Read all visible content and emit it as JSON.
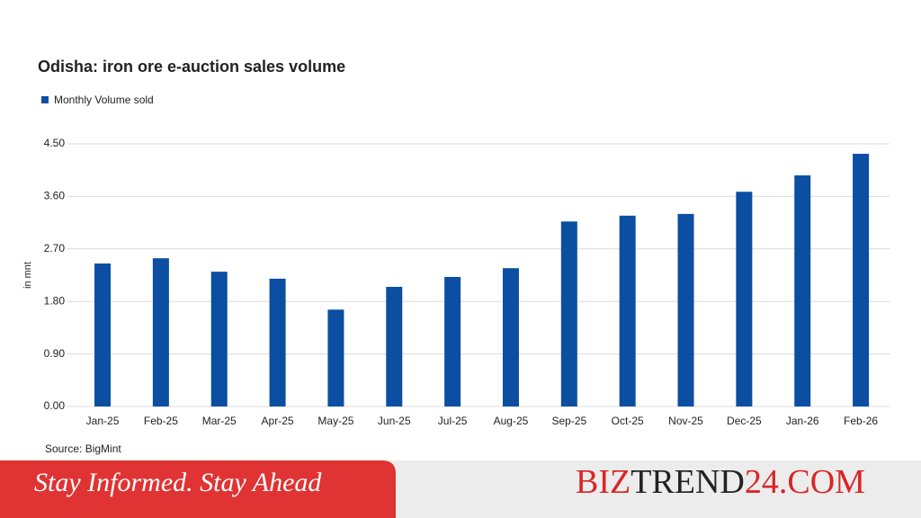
{
  "chart_data": {
    "type": "bar",
    "title": "Odisha: iron ore e-auction sales volume",
    "y_label": "in mnt",
    "source": "Source: BigMint",
    "legend": "top-left",
    "categories": [
      "Jan-25",
      "Feb-25",
      "Mar-25",
      "Apr-25",
      "May-25",
      "Jun-25",
      "Jul-25",
      "Aug-25",
      "Sep-25",
      "Oct-25",
      "Nov-25",
      "Dec-25",
      "Jan-26",
      "Feb-26"
    ],
    "series": [
      {
        "name": "Monthly Volume sold",
        "color": "#0b4ea2",
        "values": [
          2.45,
          2.54,
          2.31,
          2.19,
          1.66,
          2.05,
          2.22,
          2.37,
          3.17,
          3.27,
          3.3,
          3.68,
          3.96,
          4.33
        ]
      }
    ],
    "ylim": [
      0,
      4.5
    ],
    "yticks": [
      {
        "value": 0,
        "label": "0.00"
      },
      {
        "value": 0.9,
        "label": "0.90"
      },
      {
        "value": 1.8,
        "label": "1.80"
      },
      {
        "value": 2.7,
        "label": "2.70"
      },
      {
        "value": 3.6,
        "label": "3.60"
      },
      {
        "value": 4.5,
        "label": "4.50"
      }
    ],
    "grid": true
  },
  "banner": {
    "tagline": "Stay Informed. Stay Ahead",
    "brand": [
      "BIZ",
      "TREND",
      "24",
      ".COM"
    ]
  }
}
